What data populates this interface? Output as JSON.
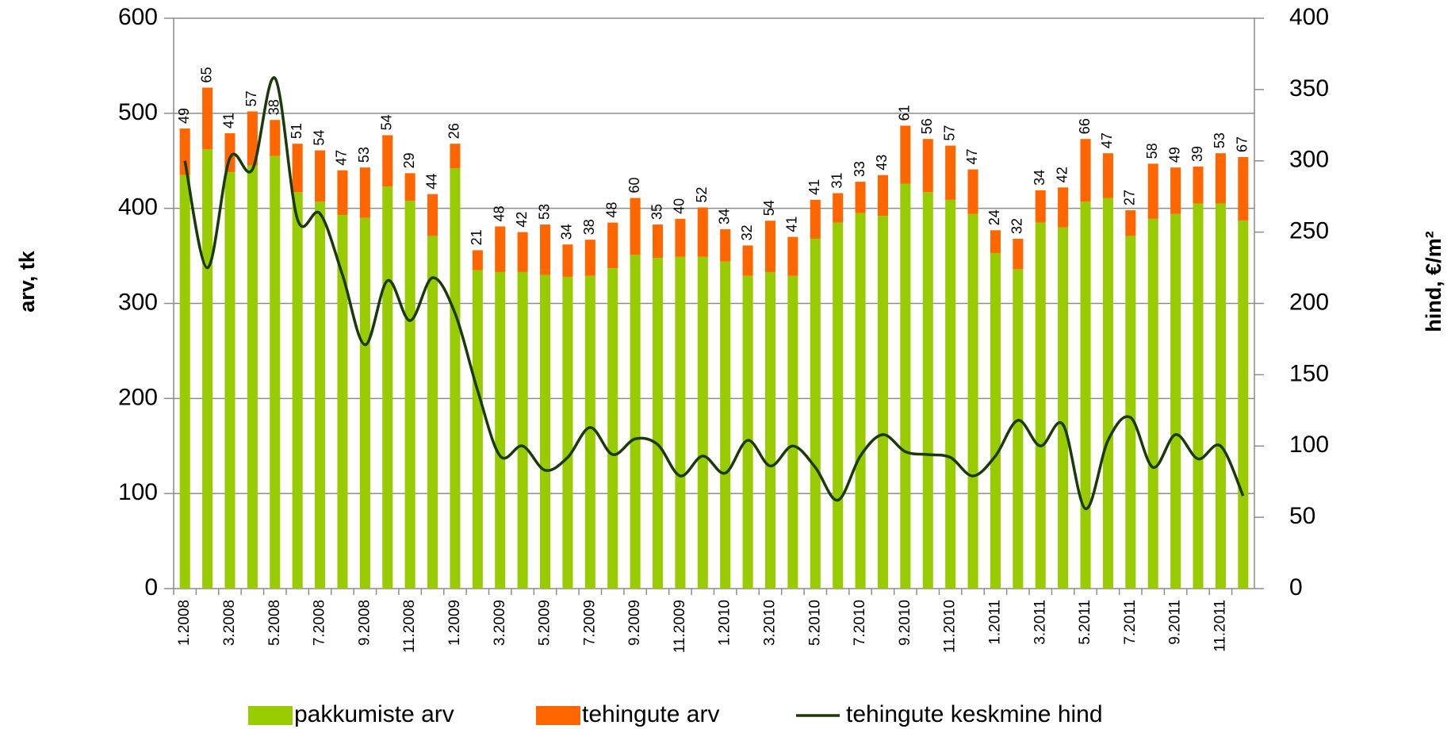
{
  "chart_data": {
    "type": "bar",
    "y_label": "arv, tk",
    "y2_label": "hind, €/m²",
    "categories": [
      "1.2008",
      null,
      "3.2008",
      null,
      "5.2008",
      null,
      "7.2008",
      null,
      "9.2008",
      null,
      "11.2008",
      null,
      "1.2009",
      null,
      "3.2009",
      null,
      "5.2009",
      null,
      "7.2009",
      null,
      "9.2009",
      null,
      "11.2009",
      null,
      "1.2010",
      null,
      "3.2010",
      null,
      "5.2010",
      null,
      "7.2010",
      null,
      "9.2010",
      null,
      "11.2010",
      null,
      "1.2011",
      null,
      "3.2011",
      null,
      "5.2011",
      null,
      "7.2011",
      null,
      "9.2011",
      null,
      "11.2011",
      null
    ],
    "series": [
      {
        "name": "pakkumiste arv",
        "color": "#99cc00",
        "stack": true,
        "values": [
          435,
          462,
          438,
          445,
          455,
          417,
          407,
          393,
          390,
          423,
          408,
          371,
          442,
          335,
          333,
          333,
          330,
          328,
          329,
          337,
          351,
          348,
          349,
          349,
          344,
          329,
          333,
          329,
          368,
          385,
          395,
          392,
          426,
          417,
          409,
          394,
          353,
          336,
          385,
          380,
          407,
          411,
          371,
          389,
          394,
          405,
          405,
          387
        ]
      },
      {
        "name": "tehingute arv",
        "color": "#ff6600",
        "stack": true,
        "values": [
          49,
          65,
          41,
          57,
          38,
          51,
          54,
          47,
          53,
          54,
          29,
          44,
          26,
          21,
          48,
          42,
          53,
          34,
          38,
          48,
          60,
          35,
          40,
          52,
          34,
          32,
          54,
          41,
          41,
          31,
          33,
          43,
          61,
          56,
          57,
          47,
          24,
          32,
          34,
          42,
          66,
          47,
          27,
          58,
          49,
          39,
          53,
          67
        ],
        "data_labels": true
      },
      {
        "name": "tehingute keskmine hind",
        "color": "#1a3a0a",
        "type": "line",
        "axis": "y2",
        "values": [
          300,
          225,
          302,
          294,
          358,
          259,
          263,
          220,
          171,
          216,
          188,
          218,
          193,
          139,
          93,
          100,
          83,
          92,
          113,
          94,
          105,
          101,
          79,
          93,
          81,
          104,
          86,
          100,
          85,
          62,
          93,
          108,
          96,
          94,
          92,
          79,
          93,
          118,
          100,
          115,
          56,
          104,
          120,
          85,
          108,
          91,
          100,
          65
        ]
      }
    ],
    "ylim": [
      0,
      600
    ],
    "yticks": [
      0,
      100,
      200,
      300,
      400,
      500,
      600
    ],
    "y2lim": [
      0,
      400
    ],
    "y2ticks": [
      0,
      50,
      100,
      150,
      200,
      250,
      300,
      350,
      400
    ],
    "grid": true,
    "legend": "bottom"
  }
}
